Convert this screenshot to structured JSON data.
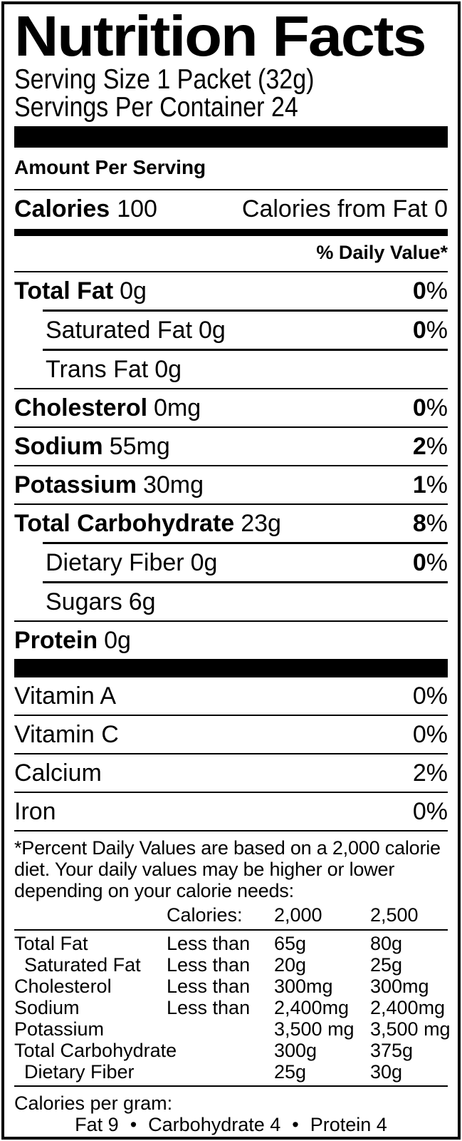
{
  "title": "Nutrition Facts",
  "serving": {
    "size": "Serving Size 1 Packet (32g)",
    "per_container": "Servings Per Container 24"
  },
  "amount_per_serving": "Amount Per Serving",
  "calories": {
    "label": "Calories",
    "value": "100",
    "from_fat_label": "Calories from Fat",
    "from_fat_value": "0"
  },
  "daily_value_header": "% Daily Value*",
  "nutrients": [
    {
      "label": "Total Fat",
      "amount": "0g",
      "dv": "0",
      "dv_unit": "%"
    },
    {
      "label": "Saturated Fat",
      "amount": "0g",
      "dv": "0",
      "dv_unit": "%"
    },
    {
      "label": "Trans Fat",
      "amount": "0g"
    },
    {
      "label": "Cholesterol",
      "amount": "0mg",
      "dv": "0",
      "dv_unit": "%"
    },
    {
      "label": "Sodium",
      "amount": "55mg",
      "dv": "2",
      "dv_unit": "%"
    },
    {
      "label": "Potassium",
      "amount": "30mg",
      "dv": "1",
      "dv_unit": "%"
    },
    {
      "label": "Total Carbohydrate",
      "amount": "23g",
      "dv": "8",
      "dv_unit": "%"
    },
    {
      "label": "Dietary Fiber",
      "amount": "0g",
      "dv": "0",
      "dv_unit": "%"
    },
    {
      "label": "Sugars",
      "amount": "6g"
    },
    {
      "label": "Protein",
      "amount": "0g"
    }
  ],
  "vitamins": [
    {
      "label": "Vitamin A",
      "dv": "0%"
    },
    {
      "label": "Vitamin C",
      "dv": "0%"
    },
    {
      "label": "Calcium",
      "dv": "2%"
    },
    {
      "label": "Iron",
      "dv": "0%"
    }
  ],
  "footnote": {
    "text": "*Percent Daily Values are based on a 2,000 calorie diet. Your daily values may be higher or lower depending on your calorie needs:",
    "table": {
      "header": {
        "calories_label": "Calories:",
        "col_2000": "2,000",
        "col_2500": "2,500"
      },
      "rows": [
        [
          "Total Fat",
          "Less than",
          "65g",
          "80g"
        ],
        [
          "Saturated Fat",
          "Less than",
          "20g",
          "25g"
        ],
        [
          "Cholesterol",
          "Less than",
          "300mg",
          "300mg"
        ],
        [
          "Sodium",
          "Less than",
          "2,400mg",
          "2,400mg"
        ],
        [
          "Potassium",
          "",
          "3,500 mg",
          "3,500 mg"
        ],
        [
          "Total Carbohydrate",
          "",
          "300g",
          "375g"
        ],
        [
          "Dietary Fiber",
          "",
          "25g",
          "30g"
        ]
      ]
    }
  },
  "calories_per_gram": {
    "label": "Calories per gram:",
    "items": [
      "Fat 9",
      "Carbohydrate 4",
      "Protein 4"
    ],
    "bullet": "•"
  },
  "colors": {
    "ink": "#000000",
    "paper": "#ffffff"
  }
}
